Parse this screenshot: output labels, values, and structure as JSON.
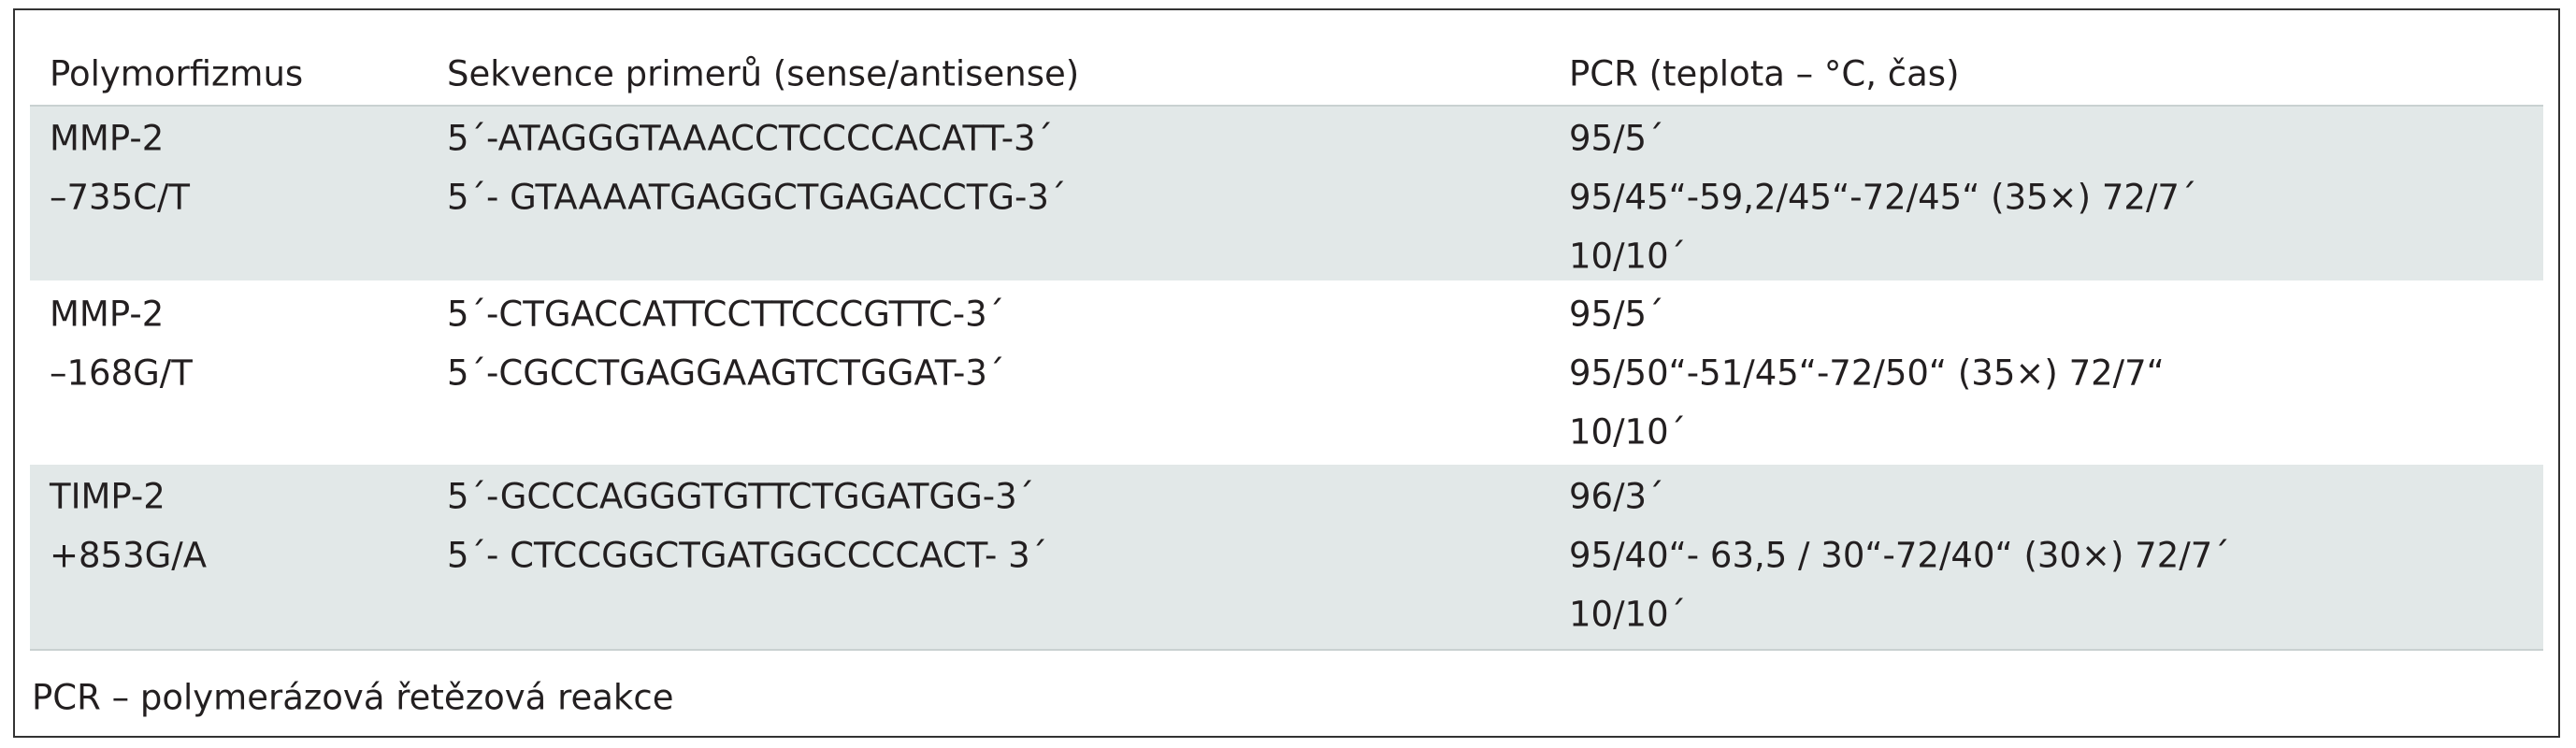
{
  "table": {
    "headers": [
      "Polymorfizmus",
      "Sekvence primerů (sense/antisense)",
      "PCR (teplota – °C, čas)"
    ],
    "rows": [
      [
        [
          "MMP-2",
          "–735C/T"
        ],
        [
          "5´-ATAGGGTAAACCTCCCCACATT-3´",
          "5´- GTAAAATGAGGCTGAGACCTG-3´"
        ],
        [
          "95/5´",
          "95/45“-59,2/45“-72/45“ (35×) 72/7´",
          "10/10´"
        ]
      ],
      [
        [
          "MMP-2",
          "–168G/T"
        ],
        [
          "5´-CTGACCATTCCTTCCCGTTC-3´",
          "5´-CGCCTGAGGAAGTCTGGAT-3´"
        ],
        [
          "95/5´",
          "95/50“-51/45“-72/50“ (35×) 72/7“",
          "10/10´"
        ]
      ],
      [
        [
          "TIMP-2",
          "+853G/A"
        ],
        [
          "5´-GCCCAGGGTGTTCTGGATGG-3´",
          "5´- CTCCGGCTGATGGCCCCACT- 3´"
        ],
        [
          "96/3´",
          "95/40“- 63,5 / 30“-72/40“ (30×) 72/7´",
          "10/10´"
        ]
      ]
    ]
  },
  "footnote": "PCR – polymerázová řetězová reakce"
}
